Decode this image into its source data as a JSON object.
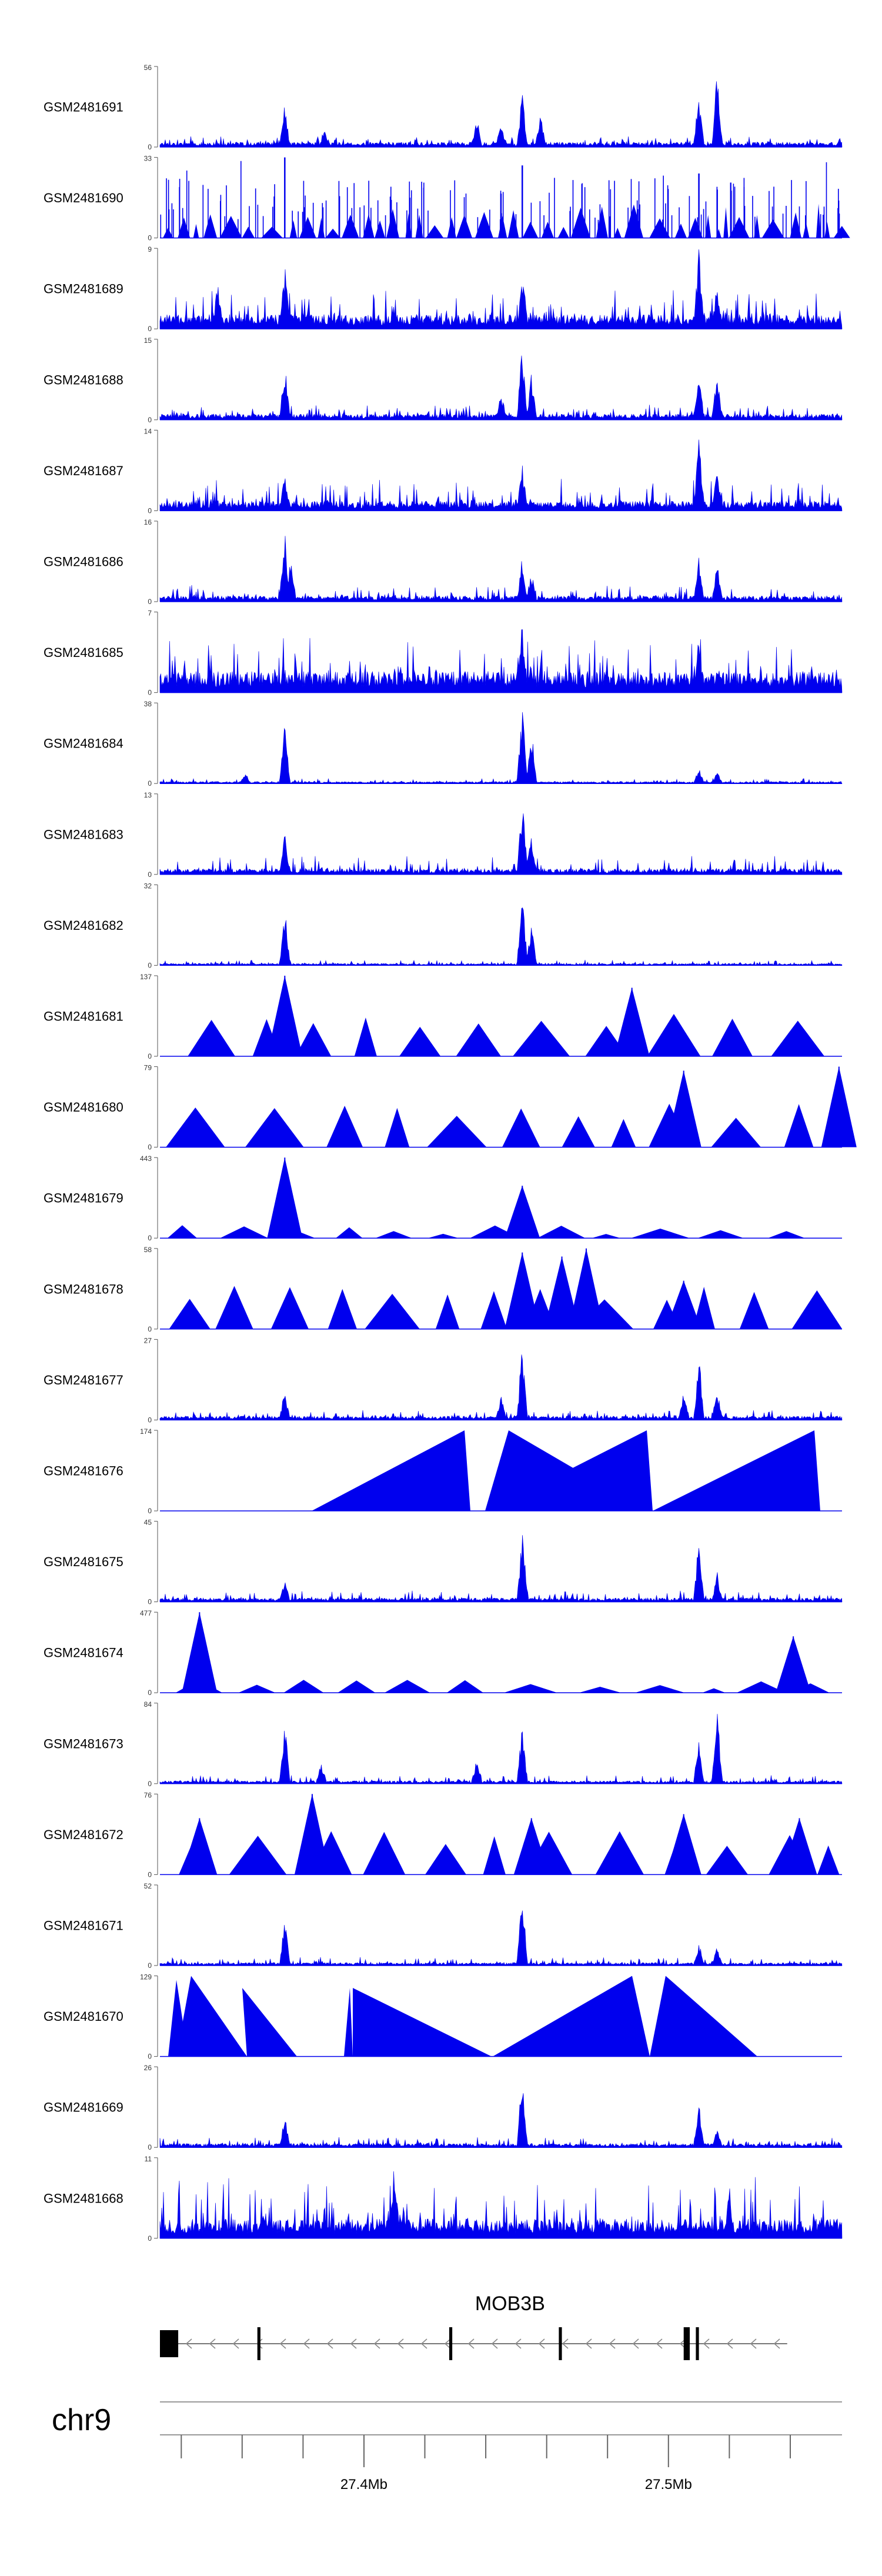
{
  "chart_data": {
    "type": "area",
    "title": "",
    "chromosome": "chr9",
    "xlim_mb": [
      27.333,
      27.557
    ],
    "x_ticks_mb": [
      27.4,
      27.5
    ],
    "x_tick_labels": [
      "27.4Mb",
      "27.5Mb"
    ],
    "series_color": "#0000ee",
    "gene": {
      "name": "MOB3B",
      "strand": "-",
      "start_mb": 27.333,
      "end_mb": 27.539,
      "exons_mb": [
        [
          27.333,
          27.339
        ],
        [
          27.365,
          27.366
        ],
        [
          27.428,
          27.429
        ],
        [
          27.464,
          27.465
        ],
        [
          27.505,
          27.507
        ],
        [
          27.509,
          27.51
        ]
      ]
    },
    "tracks": [
      {
        "name": "GSM2481691",
        "ymax": 56,
        "ymin": 0,
        "pattern": "dense",
        "bg": 0.05,
        "noise": 0.08,
        "peaks": [
          [
            27.374,
            0.55
          ],
          [
            27.387,
            0.25
          ],
          [
            27.437,
            0.4
          ],
          [
            27.445,
            0.3
          ],
          [
            27.452,
            0.7
          ],
          [
            27.458,
            0.45
          ],
          [
            27.51,
            0.75
          ],
          [
            27.516,
            1.0
          ]
        ]
      },
      {
        "name": "GSM2481690",
        "ymax": 33,
        "ymin": 0,
        "pattern": "sparse",
        "bg": 0.0,
        "noise": 0.45,
        "peaks": [
          [
            27.374,
            1.0
          ],
          [
            27.445,
            0.55
          ],
          [
            27.452,
            0.9
          ],
          [
            27.51,
            0.8
          ],
          [
            27.516,
            0.6
          ]
        ]
      },
      {
        "name": "GSM2481689",
        "ymax": 9,
        "ymin": 0,
        "pattern": "dense",
        "bg": 0.15,
        "noise": 0.35,
        "peaks": [
          [
            27.352,
            0.6
          ],
          [
            27.374,
            0.8
          ],
          [
            27.452,
            0.7
          ],
          [
            27.51,
            1.0
          ],
          [
            27.516,
            0.6
          ]
        ]
      },
      {
        "name": "GSM2481688",
        "ymax": 15,
        "ymin": 0,
        "pattern": "dense",
        "bg": 0.06,
        "noise": 0.12,
        "peaks": [
          [
            27.374,
            0.75
          ],
          [
            27.445,
            0.35
          ],
          [
            27.452,
            1.0
          ],
          [
            27.455,
            0.6
          ],
          [
            27.51,
            0.6
          ],
          [
            27.516,
            0.65
          ]
        ]
      },
      {
        "name": "GSM2481687",
        "ymax": 14,
        "ymin": 0,
        "pattern": "dense",
        "bg": 0.1,
        "noise": 0.28,
        "peaks": [
          [
            27.374,
            0.5
          ],
          [
            27.452,
            0.6
          ],
          [
            27.51,
            1.0
          ],
          [
            27.516,
            0.55
          ]
        ]
      },
      {
        "name": "GSM2481686",
        "ymax": 16,
        "ymin": 0,
        "pattern": "dense",
        "bg": 0.06,
        "noise": 0.14,
        "peaks": [
          [
            27.374,
            1.0
          ],
          [
            27.376,
            0.6
          ],
          [
            27.452,
            0.6
          ],
          [
            27.455,
            0.4
          ],
          [
            27.51,
            0.65
          ],
          [
            27.516,
            0.5
          ]
        ]
      },
      {
        "name": "GSM2481685",
        "ymax": 7,
        "ymin": 0,
        "pattern": "dense",
        "bg": 0.22,
        "noise": 0.45,
        "peaks": [
          [
            27.452,
            1.0
          ],
          [
            27.51,
            0.8
          ]
        ]
      },
      {
        "name": "GSM2481684",
        "ymax": 38,
        "ymin": 0,
        "pattern": "dense",
        "bg": 0.02,
        "noise": 0.04,
        "peaks": [
          [
            27.361,
            0.15
          ],
          [
            27.374,
            0.8
          ],
          [
            27.452,
            1.0
          ],
          [
            27.455,
            0.7
          ],
          [
            27.51,
            0.2
          ],
          [
            27.516,
            0.15
          ]
        ]
      },
      {
        "name": "GSM2481683",
        "ymax": 13,
        "ymin": 0,
        "pattern": "dense",
        "bg": 0.06,
        "noise": 0.18,
        "peaks": [
          [
            27.374,
            0.6
          ],
          [
            27.452,
            1.0
          ],
          [
            27.455,
            0.6
          ]
        ]
      },
      {
        "name": "GSM2481682",
        "ymax": 32,
        "ymin": 0,
        "pattern": "dense",
        "bg": 0.02,
        "noise": 0.05,
        "peaks": [
          [
            27.374,
            0.75
          ],
          [
            27.452,
            1.0
          ],
          [
            27.455,
            0.6
          ]
        ]
      },
      {
        "name": "GSM2481681",
        "ymax": 137,
        "ymin": 0,
        "pattern": "triangles",
        "bg": 0.0,
        "noise": 0.45,
        "peaks": [
          [
            27.374,
            1.0
          ],
          [
            27.488,
            0.85
          ]
        ]
      },
      {
        "name": "GSM2481680",
        "ymax": 79,
        "ymin": 0,
        "pattern": "triangles",
        "bg": 0.0,
        "noise": 0.5,
        "peaks": [
          [
            27.505,
            0.95
          ],
          [
            27.556,
            1.0
          ]
        ]
      },
      {
        "name": "GSM2481679",
        "ymax": 443,
        "ymin": 0,
        "pattern": "triangles-low",
        "bg": 0.0,
        "noise": 0.12,
        "peaks": [
          [
            27.374,
            1.0
          ],
          [
            27.452,
            0.65
          ]
        ]
      },
      {
        "name": "GSM2481678",
        "ymax": 58,
        "ymin": 0,
        "pattern": "triangles",
        "bg": 0.0,
        "noise": 0.5,
        "peaks": [
          [
            27.452,
            0.95
          ],
          [
            27.465,
            0.9
          ],
          [
            27.473,
            1.0
          ],
          [
            27.505,
            0.6
          ]
        ]
      },
      {
        "name": "GSM2481677",
        "ymax": 27,
        "ymin": 0,
        "pattern": "dense",
        "bg": 0.04,
        "noise": 0.08,
        "peaks": [
          [
            27.374,
            0.4
          ],
          [
            27.445,
            0.35
          ],
          [
            27.452,
            1.0
          ],
          [
            27.505,
            0.4
          ],
          [
            27.51,
            0.85
          ],
          [
            27.516,
            0.4
          ]
        ]
      },
      {
        "name": "GSM2481676",
        "ymax": 174,
        "ymin": 0,
        "pattern": "big-triangles",
        "bg": 0.0,
        "noise": 1.0,
        "peaks": []
      },
      {
        "name": "GSM2481675",
        "ymax": 45,
        "ymin": 0,
        "pattern": "dense",
        "bg": 0.04,
        "noise": 0.1,
        "peaks": [
          [
            27.374,
            0.3
          ],
          [
            27.452,
            1.0
          ],
          [
            27.51,
            0.9
          ],
          [
            27.516,
            0.4
          ]
        ]
      },
      {
        "name": "GSM2481674",
        "ymax": 477,
        "ymin": 0,
        "pattern": "triangles-low",
        "bg": 0.0,
        "noise": 0.25,
        "peaks": [
          [
            27.346,
            1.0
          ],
          [
            27.541,
            0.7
          ]
        ]
      },
      {
        "name": "GSM2481673",
        "ymax": 84,
        "ymin": 0,
        "pattern": "dense",
        "bg": 0.03,
        "noise": 0.08,
        "peaks": [
          [
            27.374,
            0.8
          ],
          [
            27.386,
            0.3
          ],
          [
            27.437,
            0.35
          ],
          [
            27.452,
            0.8
          ],
          [
            27.51,
            0.6
          ],
          [
            27.516,
            1.0
          ]
        ]
      },
      {
        "name": "GSM2481672",
        "ymax": 76,
        "ymin": 0,
        "pattern": "triangles",
        "bg": 0.0,
        "noise": 0.55,
        "peaks": [
          [
            27.383,
            1.0
          ],
          [
            27.346,
            0.7
          ],
          [
            27.455,
            0.7
          ],
          [
            27.505,
            0.75
          ],
          [
            27.543,
            0.7
          ]
        ]
      },
      {
        "name": "GSM2481671",
        "ymax": 52,
        "ymin": 0,
        "pattern": "dense",
        "bg": 0.03,
        "noise": 0.08,
        "peaks": [
          [
            27.374,
            0.6
          ],
          [
            27.452,
            1.0
          ],
          [
            27.51,
            0.3
          ],
          [
            27.516,
            0.25
          ]
        ]
      },
      {
        "name": "GSM2481670",
        "ymax": 129,
        "ymin": 0,
        "pattern": "triangles-big2",
        "bg": 0.0,
        "noise": 0.9,
        "peaks": []
      },
      {
        "name": "GSM2481669",
        "ymax": 26,
        "ymin": 0,
        "pattern": "dense",
        "bg": 0.04,
        "noise": 0.08,
        "peaks": [
          [
            27.374,
            0.4
          ],
          [
            27.452,
            1.0
          ],
          [
            27.51,
            0.6
          ],
          [
            27.516,
            0.25
          ]
        ]
      },
      {
        "name": "GSM2481668",
        "ymax": 11,
        "ymin": 0,
        "pattern": "dense",
        "bg": 0.2,
        "noise": 0.55,
        "peaks": [
          [
            27.41,
            1.0
          ],
          [
            27.52,
            0.7
          ]
        ]
      }
    ]
  }
}
